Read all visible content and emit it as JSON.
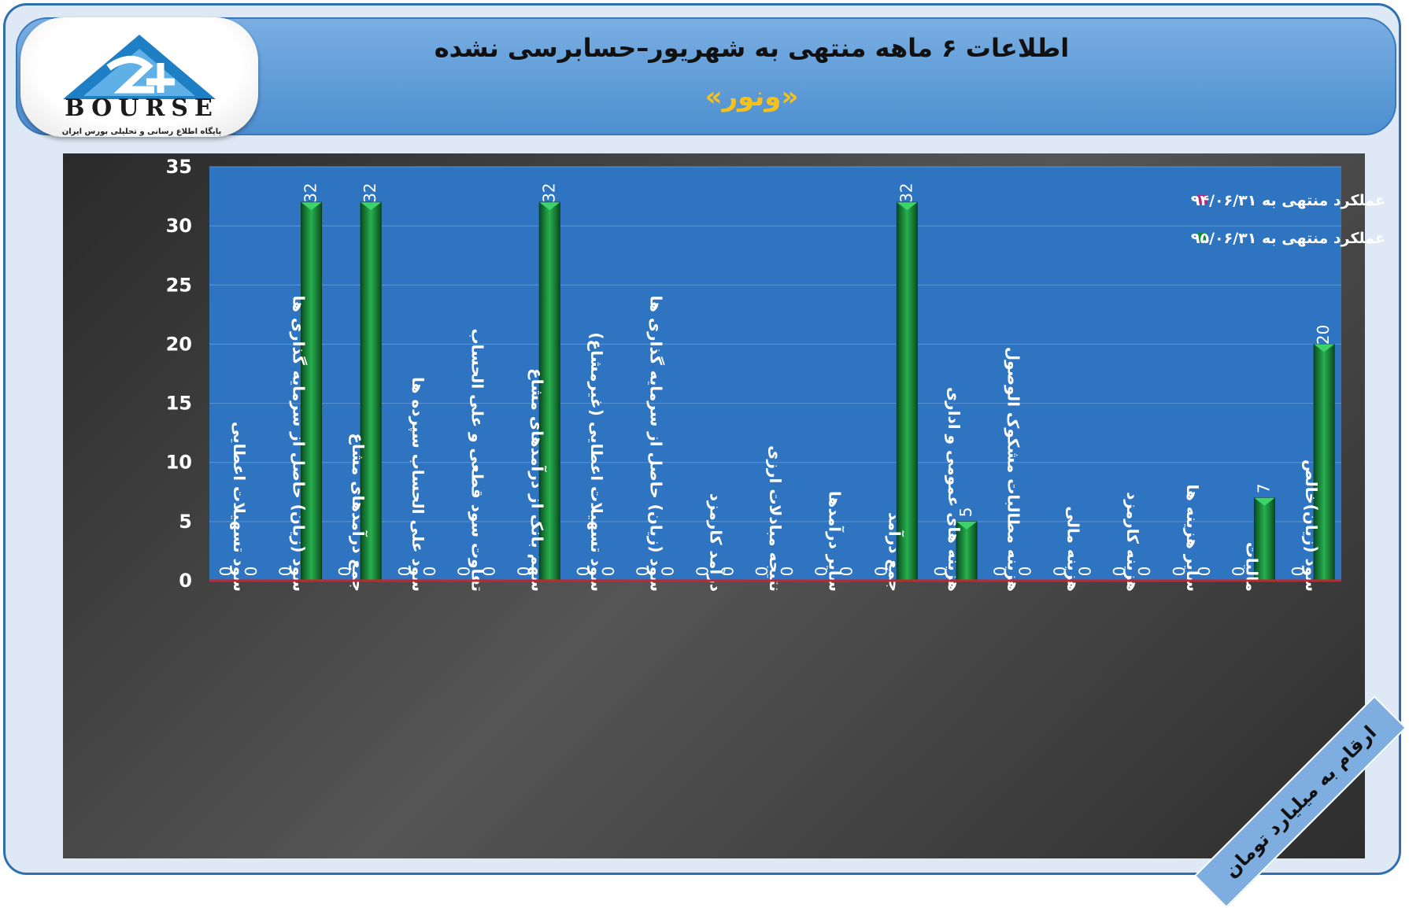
{
  "header": {
    "title": "اطلاعات ۶ ماهه منتهی به شهریور–حسابرسی نشده",
    "subtitle": "«ونور»"
  },
  "logo": {
    "text": "BOURSE",
    "subtext": "پایگاه اطلاع رسانی و تحلیلی بورس ایران"
  },
  "unit_note": "ارقام به میلیارد تومان",
  "colors": {
    "plot_bg": "#2f74c0",
    "series1": "#b0277a",
    "series2": "#0f8a38",
    "baseline": "#c0282d"
  },
  "chart_data": {
    "type": "bar",
    "title": "",
    "xlabel": "",
    "ylabel": "",
    "ylim": [
      0,
      35
    ],
    "yticks": [
      0,
      5,
      10,
      15,
      20,
      25,
      30,
      35
    ],
    "grid": true,
    "legend_position": "top-right",
    "categories": [
      "سود تسهیلات اعطایی",
      "سود (زیان) حاصل از سرمایه گذاری ها",
      "جمع درآمدهای مشاع",
      "سود علی الحساب سپرده ها",
      "تفاوت سود قطعی و علی الحساب",
      "سهم بانک از درآمدهای مشاع",
      "سود تسهیلات اعطایی (غیرمشاع)",
      "سود (زیان) حاصل از سرمایه گذاری ها",
      "درآمد کارمزد",
      "نتیجه مبادلات ارزی",
      "سایر درآمدها",
      "جمع درآمد",
      "هزینه های عمومی و اداری",
      "هزینه مطالبات مشکوک الوصول",
      "هزینه مالی",
      "هزینه کارمزد",
      "سایر هزینه ها",
      "مالیات",
      "سود (زیان)خالص"
    ],
    "series": [
      {
        "name": "عملکرد منتهی به ۹۴/۰۶/۳۱",
        "values": [
          0,
          0,
          0,
          0,
          0,
          0,
          0,
          0,
          0,
          0,
          0,
          0,
          0,
          0,
          0,
          0,
          0,
          0,
          0
        ]
      },
      {
        "name": "عملکرد منتهی به ۹۵/۰۶/۳۱",
        "values": [
          0,
          32,
          32,
          0,
          0,
          32,
          0,
          0,
          0,
          0,
          0,
          32,
          5,
          0,
          0,
          0,
          0,
          7,
          20
        ]
      }
    ]
  }
}
